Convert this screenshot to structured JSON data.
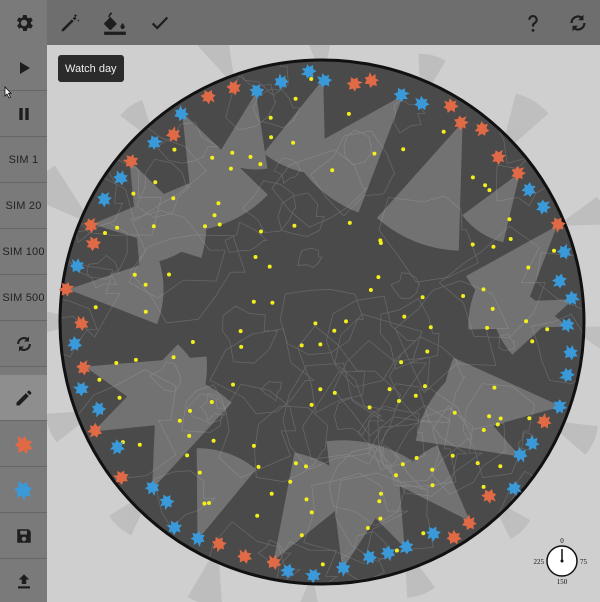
{
  "tooltip": {
    "text": "Watch day"
  },
  "sidebar": {
    "sim_buttons": [
      {
        "label": "SIM 1"
      },
      {
        "label": "SIM 20"
      },
      {
        "label": "SIM 100"
      },
      {
        "label": "SIM 500"
      }
    ],
    "team_colors": {
      "orange": "#e06a45",
      "blue": "#3a9ad9"
    }
  },
  "compass": {
    "top": "0",
    "right": "75",
    "bottom": "150",
    "left": "225"
  },
  "icons": {
    "top_left": [
      "gear-icon"
    ],
    "toolbar": [
      "wand-icon",
      "paint-bucket-icon",
      "check-icon"
    ],
    "top_right": [
      "help-icon",
      "refresh-icon"
    ],
    "sidebar": [
      "play-icon",
      "pause-icon",
      "refresh-icon",
      "pencil-icon",
      "orange-team-icon",
      "blue-team-icon",
      "save-icon",
      "upload-icon"
    ]
  },
  "colors": {
    "map_fill": "#4a4a4a",
    "agent_yellow": "#f2ef1b",
    "orange": "#e06a45",
    "blue": "#3a9ad9"
  }
}
